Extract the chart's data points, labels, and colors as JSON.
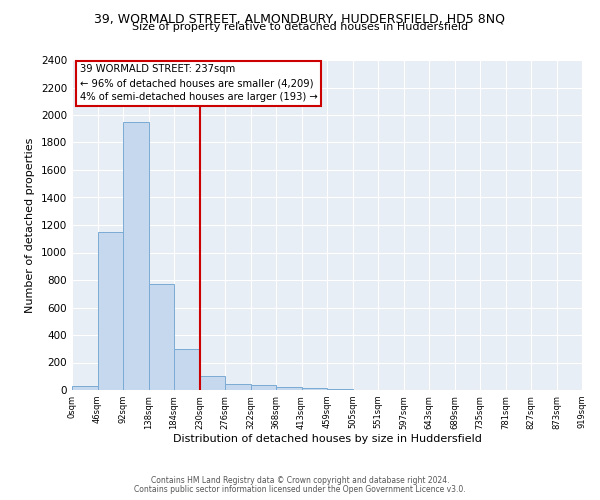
{
  "title_line1": "39, WORMALD STREET, ALMONDBURY, HUDDERSFIELD, HD5 8NQ",
  "title_line2": "Size of property relative to detached houses in Huddersfield",
  "xlabel": "Distribution of detached houses by size in Huddersfield",
  "ylabel": "Number of detached properties",
  "bar_values": [
    30,
    1150,
    1950,
    770,
    300,
    100,
    45,
    35,
    20,
    15,
    5,
    0,
    0,
    0,
    0,
    0,
    0,
    0,
    0,
    0
  ],
  "bin_labels": [
    "0sqm",
    "46sqm",
    "92sqm",
    "138sqm",
    "184sqm",
    "230sqm",
    "276sqm",
    "322sqm",
    "368sqm",
    "413sqm",
    "459sqm",
    "505sqm",
    "551sqm",
    "597sqm",
    "643sqm",
    "689sqm",
    "735sqm",
    "781sqm",
    "827sqm",
    "873sqm",
    "919sqm"
  ],
  "bar_color": "#c5d8ee",
  "bar_edge_color": "#7aabd4",
  "vline_color": "#cc0000",
  "vline_x": 5.0,
  "annotation_text": "39 WORMALD STREET: 237sqm\n← 96% of detached houses are smaller (4,209)\n4% of semi-detached houses are larger (193) →",
  "ylim": [
    0,
    2400
  ],
  "yticks": [
    0,
    200,
    400,
    600,
    800,
    1000,
    1200,
    1400,
    1600,
    1800,
    2000,
    2200,
    2400
  ],
  "footnote1": "Contains HM Land Registry data © Crown copyright and database right 2024.",
  "footnote2": "Contains public sector information licensed under the Open Government Licence v3.0.",
  "plot_background": "#e8eef5"
}
